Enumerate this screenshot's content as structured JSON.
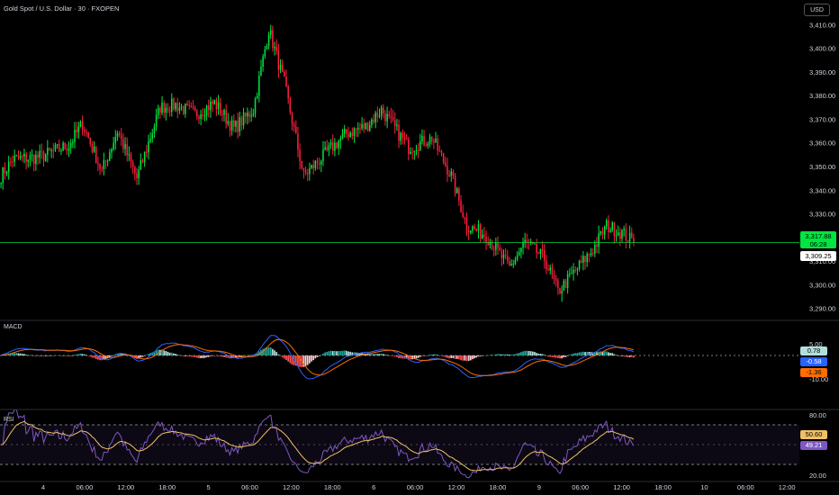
{
  "title": "Gold Spot / U.S. Dollar · 30 · FXOPEN",
  "currency_button": "USD",
  "colors": {
    "up": "#00e640",
    "down": "#ff1f3d",
    "current_price_bg": "#00e640",
    "macd_line": "#2962ff",
    "signal_line": "#ff6d00",
    "hist_pos_strong": "#26a69a",
    "hist_pos_weak": "#b2dfdb",
    "hist_neg_strong": "#ff5252",
    "hist_neg_weak": "#ffcdd2",
    "rsi_line": "#7e57c2",
    "rsi_ma": "#f0c066"
  },
  "price_axis": {
    "ticks": [
      "3,410.00",
      "3,400.00",
      "3,390.00",
      "3,380.00",
      "3,370.00",
      "3,360.00",
      "3,350.00",
      "3,340.00",
      "3,330.00",
      "3,320.00",
      "3,310.00",
      "3,300.00",
      "3,290.00"
    ],
    "current_price": "3,317.88",
    "countdown": "06:28",
    "marker_price": "3,309.25"
  },
  "time_axis": [
    "4",
    "06:00",
    "12:00",
    "18:00",
    "5",
    "06:00",
    "12:00",
    "18:00",
    "6",
    "06:00",
    "12:00",
    "18:00",
    "9",
    "06:00",
    "12:00",
    "18:00",
    "10",
    "06:00",
    "12:00"
  ],
  "macd": {
    "label": "MACD",
    "axis_ticks": [
      "5.00",
      "-10.00"
    ],
    "histogram_value": "0.78",
    "macd_value": "-0.58",
    "signal_value": "-1.36"
  },
  "rsi": {
    "label": "RSI",
    "axis_ticks": [
      "80.00",
      "20.00"
    ],
    "rsi_ma_value": "50.60",
    "rsi_value": "49.21"
  },
  "chart_data": {
    "type": "candlestick",
    "symbol": "Gold Spot / U.S. Dollar",
    "interval": "30",
    "ylim": [
      3288,
      3412
    ],
    "close_keypoints": [
      [
        0,
        3346
      ],
      [
        6,
        3353
      ],
      [
        20,
        3354
      ],
      [
        35,
        3359
      ],
      [
        42,
        3368
      ],
      [
        52,
        3348
      ],
      [
        60,
        3365
      ],
      [
        70,
        3345
      ],
      [
        82,
        3375
      ],
      [
        90,
        3376
      ],
      [
        100,
        3372
      ],
      [
        110,
        3377
      ],
      [
        120,
        3366
      ],
      [
        130,
        3374
      ],
      [
        138,
        3408
      ],
      [
        146,
        3385
      ],
      [
        156,
        3346
      ],
      [
        168,
        3356
      ],
      [
        178,
        3364
      ],
      [
        188,
        3367
      ],
      [
        196,
        3374
      ],
      [
        210,
        3358
      ],
      [
        222,
        3362
      ],
      [
        232,
        3346
      ],
      [
        240,
        3325
      ],
      [
        250,
        3321
      ],
      [
        262,
        3307
      ],
      [
        270,
        3318
      ],
      [
        280,
        3311
      ],
      [
        287,
        3297
      ],
      [
        295,
        3305
      ],
      [
        305,
        3315
      ],
      [
        312,
        3325
      ],
      [
        320,
        3322
      ],
      [
        326,
        3318
      ]
    ],
    "current_price": 3317.88
  }
}
